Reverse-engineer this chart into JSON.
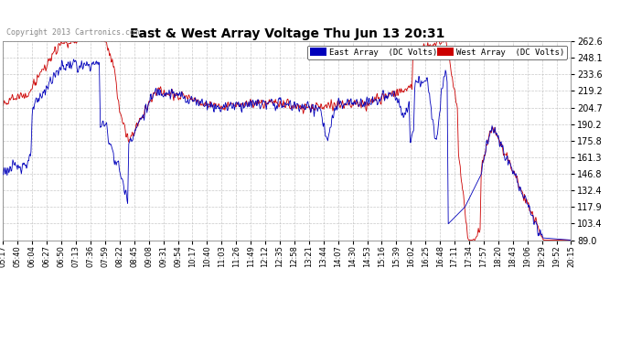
{
  "title": "East & West Array Voltage Thu Jun 13 20:31",
  "copyright": "Copyright 2013 Cartronics.com",
  "legend_east": "East Array  (DC Volts)",
  "legend_west": "West Array  (DC Volts)",
  "east_color": "#0000bb",
  "west_color": "#cc0000",
  "bg_color": "#ffffff",
  "plot_bg_color": "#ffffff",
  "grid_color": "#bbbbbb",
  "ymin": 89.0,
  "ymax": 262.6,
  "yticks": [
    89.0,
    103.4,
    117.9,
    132.4,
    146.8,
    161.3,
    175.8,
    190.2,
    204.7,
    219.2,
    233.6,
    248.1,
    262.6
  ],
  "xtick_labels": [
    "05:17",
    "05:40",
    "06:04",
    "06:27",
    "06:50",
    "07:13",
    "07:36",
    "07:59",
    "08:22",
    "08:45",
    "09:08",
    "09:31",
    "09:54",
    "10:17",
    "10:40",
    "11:03",
    "11:26",
    "11:49",
    "12:12",
    "12:35",
    "12:58",
    "13:21",
    "13:44",
    "14:07",
    "14:30",
    "14:53",
    "15:16",
    "15:39",
    "16:02",
    "16:25",
    "16:48",
    "17:11",
    "17:34",
    "17:57",
    "18:20",
    "18:43",
    "19:06",
    "19:29",
    "19:52",
    "20:15"
  ],
  "figwidth": 6.9,
  "figheight": 3.75,
  "dpi": 100
}
